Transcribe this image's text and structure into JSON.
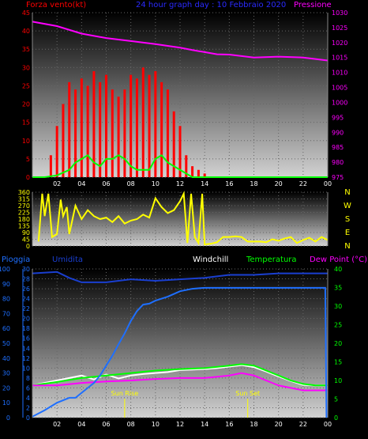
{
  "header": {
    "left": "Forza vento",
    "unit": "(kt)",
    "title": "24 hour graph day : 10 Febbraio 2020",
    "right": "Pressione"
  },
  "colors": {
    "wind": "#ff0000",
    "gust": "#00ff00",
    "pressure": "#ff00ff",
    "direction": "#ffff00",
    "rain": "#1e6fff",
    "humidity": "#1a3fd0",
    "temperature": "#00ff00",
    "dewpoint": "#ff00ff",
    "windchill": "#ffffff",
    "sun": "#ffff00"
  },
  "compass": [
    "N",
    "W",
    "S",
    "E",
    "N"
  ],
  "bottom_header": {
    "rain": "Pioggia",
    "humidity": "Umidita",
    "windchill": "Windchill",
    "temperature": "Temperatura",
    "dewpoint": "Dew Point (°C)"
  },
  "sun_labels": {
    "rise": "Sun Rise",
    "set": "Sun Set"
  },
  "chart_data": [
    {
      "type": "line",
      "title": "24 hour graph day : 10 Febbraio 2020",
      "ylabel": "Forza vento",
      "y2label": "Pressione",
      "x_ticks": [
        "02",
        "04",
        "06",
        "08",
        "10",
        "12",
        "14",
        "16",
        "18",
        "20",
        "22",
        "00"
      ],
      "xlim": [
        0,
        24
      ],
      "ylim": [
        0,
        45
      ],
      "y_ticks": [
        0,
        5,
        10,
        15,
        20,
        25,
        30,
        35,
        40,
        45
      ],
      "y2lim": [
        975,
        1030
      ],
      "y2_ticks": [
        975,
        980,
        985,
        990,
        995,
        1000,
        1005,
        1010,
        1015,
        1020,
        1025,
        1030
      ],
      "series": [
        {
          "x": [
            1.5,
            2.0,
            2.5,
            3.0,
            3.5,
            4.0,
            4.5,
            5.0,
            5.5,
            6.0,
            6.5,
            7.0,
            7.5,
            8.0,
            8.5,
            9.0,
            9.5,
            10.0,
            10.5,
            11.0,
            11.5,
            12.0,
            12.5,
            13.0,
            13.5,
            14.0
          ],
          "y": [
            6,
            14,
            20,
            26,
            24,
            27,
            25,
            29,
            26,
            28,
            24,
            22,
            24,
            28,
            27,
            30,
            28,
            29,
            26,
            24,
            18,
            14,
            6,
            3,
            2,
            1
          ]
        },
        {
          "x": [
            0,
            1,
            2,
            3,
            3.5,
            4,
            4.5,
            5,
            5.5,
            6,
            6.5,
            7,
            7.5,
            8,
            8.5,
            9,
            9.5,
            10,
            10.5,
            11,
            11.5,
            12,
            12.5,
            13,
            14,
            15,
            16,
            17,
            18,
            19,
            20,
            21,
            22,
            23,
            24
          ],
          "y": [
            0,
            0,
            0.5,
            2,
            4,
            5,
            6,
            4,
            3,
            5,
            5,
            6,
            5,
            3,
            2,
            2,
            2,
            5,
            6,
            4,
            3,
            2,
            1,
            0,
            0,
            0,
            0,
            0,
            0,
            0,
            0,
            0,
            0,
            0,
            0
          ]
        },
        {
          "x": [
            0,
            2,
            4,
            6,
            8,
            10,
            12,
            13,
            14,
            15,
            16,
            17,
            18,
            20,
            22,
            24
          ],
          "y": [
            1027,
            1025.5,
            1023,
            1021.5,
            1020.5,
            1019.5,
            1018.3,
            1017.5,
            1016.8,
            1016.1,
            1016,
            1015.5,
            1015,
            1015.3,
            1015,
            1014
          ]
        }
      ]
    },
    {
      "type": "line",
      "xlim": [
        0,
        24
      ],
      "ylim": [
        0,
        360
      ],
      "y_ticks": [
        0,
        45,
        90,
        135,
        180,
        225,
        270,
        315,
        360
      ],
      "series": [
        {
          "x": [
            0.5,
            0.8,
            1.0,
            1.3,
            1.6,
            2.0,
            2.3,
            2.5,
            2.8,
            3.0,
            3.5,
            4.0,
            4.5,
            5.0,
            5.5,
            6.0,
            6.5,
            7.0,
            7.5,
            8.0,
            8.5,
            9.0,
            9.5,
            10.0,
            10.5,
            11.0,
            11.5,
            12.0,
            12.3,
            12.6,
            12.9,
            13.2,
            13.5,
            13.8,
            14.0,
            14.5,
            15.0,
            15.5,
            16.0,
            16.5,
            17.0,
            17.5,
            18.0,
            18.5,
            19.0,
            19.5,
            20.0,
            20.5,
            21.0,
            21.5,
            22.0,
            22.5,
            23.0,
            23.5,
            24.0
          ],
          "y": [
            30,
            350,
            200,
            350,
            60,
            80,
            310,
            200,
            260,
            80,
            270,
            180,
            240,
            200,
            180,
            190,
            160,
            200,
            150,
            170,
            180,
            210,
            190,
            320,
            260,
            220,
            240,
            300,
            350,
            20,
            350,
            60,
            20,
            350,
            10,
            15,
            25,
            60,
            60,
            65,
            60,
            30,
            30,
            30,
            25,
            45,
            35,
            50,
            60,
            20,
            40,
            55,
            30,
            60,
            40
          ]
        }
      ]
    },
    {
      "type": "line",
      "ylabel": "Pioggia",
      "y2label": "Dew Point (°C)",
      "x_ticks": [
        "02",
        "04",
        "06",
        "08",
        "10",
        "12",
        "14",
        "16",
        "18",
        "20",
        "22",
        "00"
      ],
      "xlim": [
        0,
        24
      ],
      "ylim": [
        0,
        30
      ],
      "y_ticks": [
        0,
        2,
        4,
        6,
        8,
        10,
        12,
        14,
        16,
        18,
        20,
        22,
        24,
        26,
        28,
        30
      ],
      "y_humidity_ticks": [
        0,
        10,
        20,
        30,
        40,
        50,
        60,
        70,
        80,
        90,
        100
      ],
      "y2lim": [
        0,
        40
      ],
      "y2_ticks": [
        0,
        5,
        10,
        15,
        20,
        25,
        30,
        35,
        40
      ],
      "series": [
        {
          "x": [
            0,
            1,
            2,
            3,
            3.5,
            4.5,
            5,
            5.5,
            6,
            6.5,
            7,
            7.5,
            8,
            8.5,
            9,
            9.5,
            10,
            11,
            12,
            13,
            14,
            16,
            18,
            20,
            22,
            23.8,
            23.9
          ],
          "y": [
            0.2,
            1.5,
            3,
            4,
            4,
            6,
            7,
            8.5,
            10.5,
            12.5,
            14.8,
            17,
            19.5,
            21.5,
            22.8,
            23,
            23.6,
            24.4,
            25.5,
            26,
            26.2,
            26.2,
            26.2,
            26.2,
            26.2,
            26.2,
            0
          ]
        },
        {
          "x": [
            0,
            2,
            3,
            4,
            6,
            8,
            10,
            12,
            14,
            16,
            18,
            20,
            22,
            24
          ],
          "y": [
            97,
            98,
            94,
            91,
            91,
            93,
            92,
            93,
            94,
            96,
            96,
            97,
            97,
            97
          ]
        },
        {
          "x": [
            0,
            2,
            4,
            6,
            8,
            10,
            12,
            14,
            16,
            17,
            18,
            19,
            20,
            21,
            22,
            23,
            24
          ],
          "y": [
            6.5,
            7.2,
            8.0,
            8.5,
            9.0,
            9.5,
            9.8,
            10.0,
            10.5,
            10.8,
            10.5,
            9.5,
            8.5,
            7.5,
            6.8,
            6.5,
            6.5
          ]
        },
        {
          "x": [
            0,
            2,
            4,
            6,
            8,
            10,
            12,
            14,
            16,
            17,
            18,
            19,
            20,
            21,
            22,
            23,
            24
          ],
          "y": [
            6.5,
            6.5,
            7.0,
            7.3,
            7.5,
            7.8,
            8.0,
            8.0,
            8.5,
            9.0,
            8.5,
            7.5,
            6.5,
            6.0,
            5.5,
            5.5,
            5.5
          ]
        },
        {
          "x": [
            0,
            2,
            3,
            4,
            5,
            6,
            7,
            8,
            9,
            10,
            11,
            12,
            13,
            14,
            15,
            16,
            17,
            18,
            19,
            20,
            21,
            22,
            23,
            24
          ],
          "y": [
            6.5,
            7.5,
            8.0,
            8.5,
            7.7,
            8.7,
            7.9,
            8.5,
            8.8,
            9.0,
            9.2,
            9.6,
            9.7,
            9.8,
            10.0,
            10.3,
            10.6,
            10.2,
            9.3,
            8.3,
            7.4,
            6.6,
            6.5,
            6.5
          ]
        }
      ]
    }
  ]
}
